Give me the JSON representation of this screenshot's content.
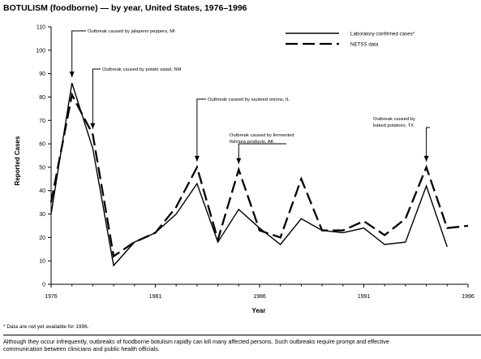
{
  "colors": {
    "line": "#000000",
    "background": "#ffffff"
  },
  "chart_data": {
    "type": "line",
    "title": "BOTULISM (foodborne) — by year, United States, 1976–1996",
    "xlabel": "Year",
    "ylabel": "Reported Cases",
    "xlim": [
      1976,
      1996
    ],
    "ylim": [
      0,
      110
    ],
    "x_ticks": [
      1976,
      1981,
      1986,
      1991,
      1996
    ],
    "y_ticks": [
      0,
      10,
      20,
      30,
      40,
      50,
      60,
      70,
      80,
      90,
      100,
      110
    ],
    "grid": false,
    "legend_position": "top-right",
    "series": [
      {
        "name": "Laboratory-confirmed cases*",
        "style": "solid",
        "x": [
          1976,
          1977,
          1978,
          1979,
          1980,
          1981,
          1982,
          1983,
          1984,
          1985,
          1986,
          1987,
          1988,
          1989,
          1990,
          1991,
          1992,
          1993,
          1994,
          1995
        ],
        "y": [
          30,
          86,
          58,
          8,
          18,
          22,
          30,
          43,
          18,
          32,
          24,
          17,
          28,
          23,
          22,
          24,
          17,
          18,
          42,
          16
        ]
      },
      {
        "name": "NETSS data",
        "style": "dashed",
        "x": [
          1976,
          1977,
          1978,
          1979,
          1980,
          1981,
          1982,
          1983,
          1984,
          1985,
          1986,
          1987,
          1988,
          1989,
          1990,
          1991,
          1992,
          1993,
          1994,
          1995,
          1996
        ],
        "y": [
          35,
          81,
          64,
          12,
          18,
          22,
          33,
          50,
          19,
          49,
          23,
          20,
          45,
          23,
          23,
          27,
          21,
          28,
          50,
          24,
          25
        ]
      }
    ],
    "annotations": [
      {
        "text": [
          "Outbreak caused by jalapeno peppers, MI"
        ],
        "x": 1977,
        "y": 86
      },
      {
        "text": [
          "Outbreak caused by potato salad, NM"
        ],
        "x": 1978,
        "y": 64
      },
      {
        "text": [
          "Outbreak caused by sauteed onions, IL"
        ],
        "x": 1983,
        "y": 50
      },
      {
        "text": [
          "Outbreak caused by fermented",
          "fish/sea products, AK"
        ],
        "x": 1985,
        "y": 49
      },
      {
        "text": [
          "Outbreak caused by",
          "baked potatoes, TX"
        ],
        "x": 1994,
        "y": 50
      }
    ]
  },
  "footnote": "* Data are not yet available for 1996.",
  "caption": "Although they occur infrequently, outbreaks of foodborne botulism rapidly can kill many affected persons. Such outbreaks require prompt and effective\ncommunication between clinicians and public health officials."
}
